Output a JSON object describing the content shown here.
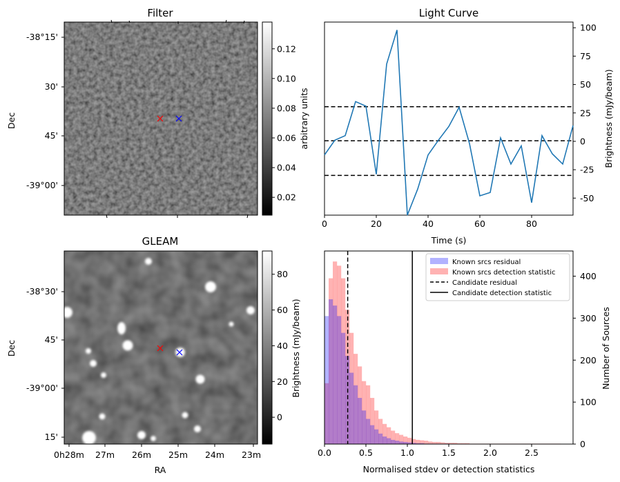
{
  "chart_data": [
    {
      "panel": "filter",
      "type": "heatmap",
      "title": "Filter",
      "ylabel": "Dec",
      "ytick_labels": [
        "-38°15'",
        "30'",
        "45'",
        "-39°00'"
      ],
      "colorbar": {
        "label": "arbitrary units",
        "range": [
          0.008,
          0.138
        ],
        "ticks": [
          0.02,
          0.04,
          0.06,
          0.08,
          0.1,
          0.12
        ],
        "tick_labels": [
          "0.02",
          "0.04",
          "0.06",
          "0.08",
          "0.10",
          "0.12"
        ]
      },
      "markers": [
        {
          "name": "candidate",
          "color": "#ff0000",
          "symbol": "x"
        },
        {
          "name": "known",
          "color": "#0000ff",
          "symbol": "x"
        }
      ]
    },
    {
      "panel": "light_curve",
      "type": "line",
      "title": "Light Curve",
      "xlabel": "Time (s)",
      "ylabel": "Brightness (mJy/beam)",
      "xlim": [
        0,
        96
      ],
      "ylim": [
        -65,
        105
      ],
      "xticks": [
        0,
        20,
        40,
        60,
        80
      ],
      "yticks": [
        -50,
        -25,
        0,
        25,
        50,
        75,
        100
      ],
      "x": [
        0,
        4,
        8,
        12,
        16,
        20,
        24,
        28,
        32,
        36,
        40,
        44,
        48,
        52,
        56,
        60,
        64,
        68,
        72,
        76,
        80,
        84,
        88,
        92,
        96
      ],
      "y": [
        -12,
        1,
        5,
        35,
        31,
        -29,
        68,
        98,
        -65,
        -42,
        -12,
        1,
        13,
        30,
        -2,
        -48,
        -45,
        3,
        -20,
        -4,
        -54,
        5,
        -11,
        -20,
        14
      ],
      "line_color": "#1f77b4",
      "hlines": [
        {
          "y": 30.5,
          "style": "dashed"
        },
        {
          "y": 0.5,
          "style": "dashed"
        },
        {
          "y": -30,
          "style": "dashed"
        }
      ]
    },
    {
      "panel": "gleam",
      "type": "heatmap",
      "title": "GLEAM",
      "xlabel": "RA",
      "ylabel": "Dec",
      "ytick_labels": [
        "-38°30'",
        "45'",
        "-39°00'",
        "15'"
      ],
      "xtick_labels": [
        "0h28m",
        "27m",
        "26m",
        "25m",
        "24m",
        "23m"
      ],
      "colorbar": {
        "label": "Brightness (mJy/beam)",
        "range": [
          -15,
          93
        ],
        "ticks": [
          0,
          20,
          40,
          60,
          80
        ],
        "tick_labels": [
          "0",
          "20",
          "40",
          "60",
          "80"
        ]
      },
      "markers": [
        {
          "name": "candidate",
          "color": "#ff0000",
          "symbol": "x"
        },
        {
          "name": "known",
          "color": "#0000ff",
          "symbol": "x"
        }
      ]
    },
    {
      "panel": "histogram",
      "type": "bar",
      "xlabel": "Normalised stdev or detection statistics",
      "ylabel": "Number of Sources",
      "xlim": [
        0,
        3.0
      ],
      "ylim": [
        0,
        460
      ],
      "xticks": [
        0.0,
        0.5,
        1.0,
        1.5,
        2.0,
        2.5
      ],
      "xtick_labels": [
        "0.0",
        "0.5",
        "1.0",
        "1.5",
        "2.0",
        "2.5"
      ],
      "yticks": [
        0,
        100,
        200,
        300,
        400
      ],
      "bin_width": 0.05,
      "series": [
        {
          "name": "Known srcs residual",
          "color": "#0000ff",
          "alpha": 0.3,
          "bin_start": 0.0,
          "values": [
            305,
            345,
            330,
            305,
            265,
            210,
            170,
            140,
            110,
            80,
            60,
            45,
            35,
            25,
            18,
            14,
            10,
            8,
            6,
            5,
            4,
            3,
            2,
            2,
            1,
            1,
            1,
            1,
            0,
            1
          ]
        },
        {
          "name": "Known srcs detection statistic",
          "color": "#ff0000",
          "alpha": 0.3,
          "bin_start": 0.0,
          "values": [
            145,
            395,
            435,
            425,
            395,
            320,
            265,
            215,
            185,
            150,
            140,
            110,
            80,
            60,
            48,
            40,
            32,
            26,
            22,
            18,
            15,
            12,
            10,
            9,
            8,
            6,
            5,
            5,
            4,
            3,
            3,
            3,
            2,
            2,
            2,
            1,
            1,
            1,
            1,
            1,
            1,
            1,
            1,
            1,
            1,
            1,
            1,
            1,
            1,
            1,
            1,
            1,
            1,
            1,
            1,
            1,
            1
          ]
        }
      ],
      "vlines": [
        {
          "name": "Candidate residual",
          "x": 0.28,
          "style": "dashed"
        },
        {
          "name": "Candidate detection statistic",
          "x": 1.06,
          "style": "solid"
        }
      ],
      "legend": "top-right"
    }
  ]
}
